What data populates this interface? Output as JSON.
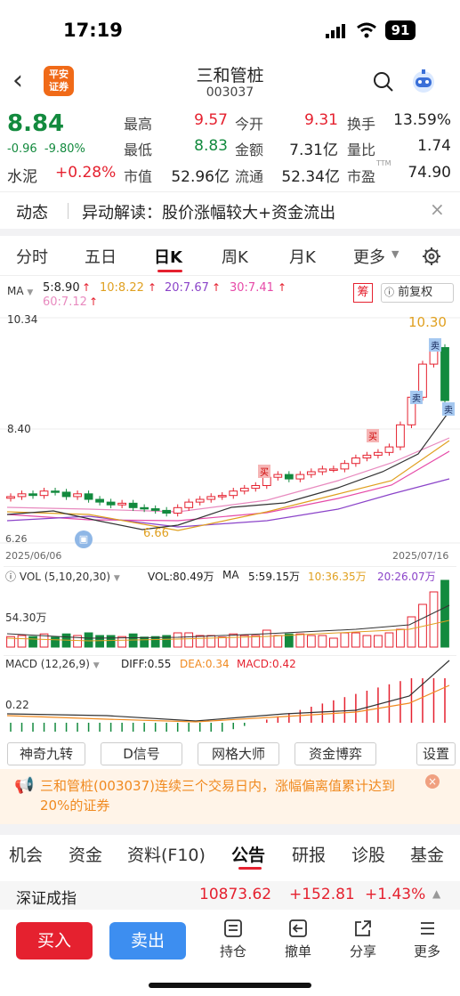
{
  "status": {
    "time": "17:19",
    "battery": "91"
  },
  "header": {
    "name": "三和管桩",
    "code": "003037",
    "logo": "平安\n证券"
  },
  "quote": {
    "price": "8.84",
    "change": "-0.96",
    "pct": "-9.80%",
    "sector": "水泥",
    "sector_pct": "+0.28%",
    "fields": [
      {
        "label": "最高",
        "value": "9.57",
        "color": "red"
      },
      {
        "label": "今开",
        "value": "9.31",
        "color": "red"
      },
      {
        "label": "换手",
        "value": "13.59%",
        "color": "dark"
      },
      {
        "label": "最低",
        "value": "8.83",
        "color": "green"
      },
      {
        "label": "金额",
        "value": "7.31亿",
        "color": "dark"
      },
      {
        "label": "量比",
        "value": "1.74",
        "color": "dark"
      },
      {
        "label": "市值",
        "value": "52.96亿",
        "color": "dark"
      },
      {
        "label": "流通",
        "value": "52.34亿",
        "color": "dark"
      },
      {
        "label": "市盈",
        "value": "74.90",
        "color": "dark"
      }
    ],
    "pe_tag": "TTM"
  },
  "news": {
    "tag": "动态",
    "text": "异动解读：股价涨幅较大+资金流出"
  },
  "period_tabs": [
    "分时",
    "五日",
    "日K",
    "周K",
    "月K",
    "更多"
  ],
  "ma": {
    "label": "MA",
    "ma5": "5:8.90",
    "ma10": "10:8.22",
    "ma20": "20:7.67",
    "ma30": "30:7.41",
    "ma60": "60:7.12",
    "chip": "筹",
    "fq": "前复权"
  },
  "kline": {
    "y_high": "10.34",
    "y_mid": "8.40",
    "max_label": "10.30",
    "min_label": "6.66",
    "date_start": "2025/06/06",
    "date_end": "2025/07/16",
    "left_axis": "6.26",
    "buy": "买",
    "sell": "卖"
  },
  "vol": {
    "label": "VOL (5,10,20,30)",
    "vol": "VOL:80.49万",
    "ma": "MA",
    "ma5": "5:59.15万",
    "ma10": "10:36.35万",
    "ma20": "20:26.07万",
    "axis": "54.30万"
  },
  "macd": {
    "label": "MACD (12,26,9)",
    "diff": "DIFF:0.55",
    "dea": "DEA:0.34",
    "macd": "MACD:0.42",
    "axis": "0.22"
  },
  "indicators": [
    "神奇九转",
    "D信号",
    "网格大师",
    "资金博弈",
    "设置"
  ],
  "alert": {
    "text": "三和管桩(003037)连续三个交易日内，涨幅偏离值累计达到20%的证券"
  },
  "info_tabs": [
    "机会",
    "资金",
    "资料(F10)",
    "公告",
    "研报",
    "诊股",
    "基金"
  ],
  "index": {
    "name": "深证成指",
    "value": "10873.62",
    "change": "+152.81",
    "pct": "+1.43%"
  },
  "bottom": {
    "buy": "买入",
    "sell": "卖出",
    "items": [
      "持仓",
      "撤单",
      "分享",
      "更多"
    ]
  },
  "chart_data": {
    "type": "candlestick",
    "x_range": [
      "2025/06/06",
      "2025/07/16"
    ],
    "ylim": [
      6.26,
      10.34
    ],
    "high": 10.3,
    "low": 6.66,
    "last_close": 8.84
  }
}
